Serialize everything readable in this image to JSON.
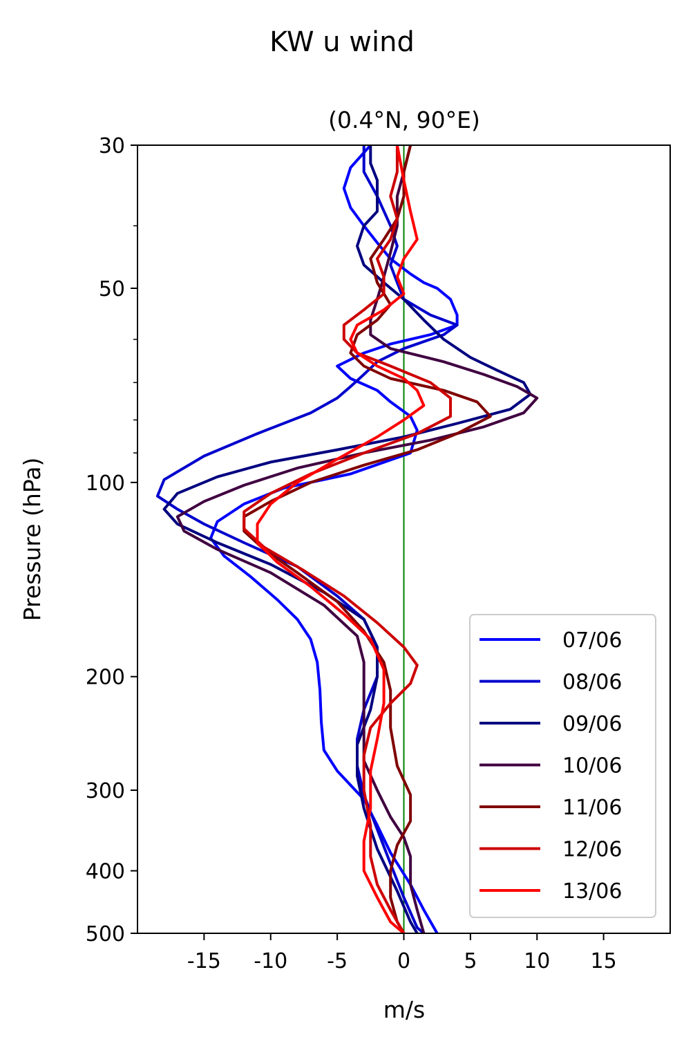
{
  "chart_data": {
    "type": "line",
    "title": "KW u wind",
    "subtitle": "(0.4°N, 90°E)",
    "xlabel": "m/s",
    "ylabel": "Pressure (hPa)",
    "xlim": [
      -20,
      20
    ],
    "ylim": [
      500,
      30
    ],
    "yscale": "log",
    "x_ticks": [
      -15,
      -10,
      -5,
      0,
      5,
      10,
      15
    ],
    "y_ticks": [
      30,
      50,
      100,
      200,
      300,
      400,
      500
    ],
    "grid": false,
    "legend_position": "lower right",
    "reference_line": {
      "x": 0,
      "color": "#008000"
    },
    "series": [
      {
        "name": "07/06",
        "color": "#0000ff",
        "points": [
          [
            -2.5,
            30
          ],
          [
            -4,
            32.5
          ],
          [
            -4.5,
            35
          ],
          [
            -4,
            37.5
          ],
          [
            -3,
            40
          ],
          [
            -2,
            42.5
          ],
          [
            -1,
            45
          ],
          [
            0.5,
            47.5
          ],
          [
            1.5,
            49
          ],
          [
            2.5,
            50
          ],
          [
            3.5,
            52
          ],
          [
            4,
            55
          ],
          [
            4,
            57
          ],
          [
            2,
            59
          ],
          [
            -1,
            61
          ],
          [
            -3,
            63
          ],
          [
            -5,
            66
          ],
          [
            -4,
            69
          ],
          [
            -2,
            72
          ],
          [
            -1,
            75
          ],
          [
            0.5,
            79
          ],
          [
            1,
            83
          ],
          [
            0.5,
            90
          ],
          [
            -4,
            97
          ],
          [
            -9,
            102
          ],
          [
            -12,
            108
          ],
          [
            -14,
            115
          ],
          [
            -14.5,
            122
          ],
          [
            -13.5,
            130
          ],
          [
            -11.5,
            140
          ],
          [
            -9.5,
            152
          ],
          [
            -8,
            163
          ],
          [
            -7,
            175
          ],
          [
            -6.5,
            190
          ],
          [
            -6.3,
            210
          ],
          [
            -6.2,
            235
          ],
          [
            -6,
            260
          ],
          [
            -5,
            280
          ],
          [
            -3,
            310
          ],
          [
            -2,
            340
          ],
          [
            -1,
            375
          ],
          [
            0.5,
            420
          ],
          [
            1.5,
            460
          ],
          [
            2.5,
            500
          ]
        ]
      },
      {
        "name": "08/06",
        "color": "#0000cd",
        "points": [
          [
            -3,
            30
          ],
          [
            -3,
            33
          ],
          [
            -2,
            36
          ],
          [
            -1,
            40
          ],
          [
            -0.5,
            43
          ],
          [
            -1,
            46
          ],
          [
            -0.5,
            49
          ],
          [
            0,
            52
          ],
          [
            2,
            55
          ],
          [
            4,
            57
          ],
          [
            3,
            59
          ],
          [
            0,
            62
          ],
          [
            -2,
            65
          ],
          [
            -3,
            68
          ],
          [
            -4,
            71
          ],
          [
            -5,
            74
          ],
          [
            -7,
            78
          ],
          [
            -11,
            84
          ],
          [
            -15,
            91
          ],
          [
            -18,
            99
          ],
          [
            -18.5,
            105
          ],
          [
            -17,
            110
          ],
          [
            -15,
            116
          ],
          [
            -12,
            124
          ],
          [
            -8,
            135
          ],
          [
            -5,
            150
          ],
          [
            -3,
            163
          ],
          [
            -2,
            180
          ],
          [
            -2,
            200
          ],
          [
            -3,
            225
          ],
          [
            -3.5,
            250
          ],
          [
            -3.5,
            275
          ],
          [
            -3,
            305
          ],
          [
            -2,
            345
          ],
          [
            -1,
            390
          ],
          [
            0,
            440
          ],
          [
            1,
            490
          ],
          [
            1.5,
            500
          ]
        ]
      },
      {
        "name": "09/06",
        "color": "#000080",
        "points": [
          [
            -2.5,
            30
          ],
          [
            -2.5,
            32
          ],
          [
            -2,
            34
          ],
          [
            -2,
            36
          ],
          [
            -2,
            38
          ],
          [
            -3,
            40
          ],
          [
            -3.5,
            43
          ],
          [
            -3,
            46
          ],
          [
            -1.5,
            49
          ],
          [
            0,
            52
          ],
          [
            1.5,
            56
          ],
          [
            3,
            60
          ],
          [
            5,
            64
          ],
          [
            7,
            67
          ],
          [
            9,
            70
          ],
          [
            9.5,
            73
          ],
          [
            8,
            77
          ],
          [
            4,
            81
          ],
          [
            0,
            85
          ],
          [
            -5,
            89
          ],
          [
            -10,
            93
          ],
          [
            -14,
            98
          ],
          [
            -17,
            104
          ],
          [
            -18,
            110
          ],
          [
            -17,
            116
          ],
          [
            -14,
            124
          ],
          [
            -10,
            134
          ],
          [
            -6,
            148
          ],
          [
            -3,
            163
          ],
          [
            -2,
            180
          ],
          [
            -2,
            200
          ],
          [
            -2.5,
            225
          ],
          [
            -3.5,
            255
          ],
          [
            -3.5,
            285
          ],
          [
            -3,
            320
          ],
          [
            -2,
            370
          ],
          [
            -0.5,
            430
          ],
          [
            0.5,
            480
          ],
          [
            1,
            500
          ]
        ]
      },
      {
        "name": "10/06",
        "color": "#400040",
        "points": [
          [
            0.5,
            30
          ],
          [
            0,
            33
          ],
          [
            -0.5,
            36
          ],
          [
            -0.5,
            40
          ],
          [
            -1,
            44
          ],
          [
            -1.5,
            48
          ],
          [
            -2,
            52
          ],
          [
            -2.5,
            56
          ],
          [
            -2.5,
            59
          ],
          [
            -1,
            62
          ],
          [
            3,
            65
          ],
          [
            6,
            68
          ],
          [
            8.5,
            71
          ],
          [
            10,
            74
          ],
          [
            9,
            78
          ],
          [
            6,
            82
          ],
          [
            2,
            86
          ],
          [
            -3,
            90
          ],
          [
            -8,
            95
          ],
          [
            -12,
            101
          ],
          [
            -15,
            107
          ],
          [
            -17,
            113
          ],
          [
            -16.5,
            119
          ],
          [
            -14,
            127
          ],
          [
            -10,
            138
          ],
          [
            -6,
            155
          ],
          [
            -3.5,
            173
          ],
          [
            -3,
            190
          ],
          [
            -3,
            210
          ],
          [
            -3,
            240
          ],
          [
            -3,
            270
          ],
          [
            -2,
            300
          ],
          [
            -1,
            330
          ],
          [
            0,
            355
          ],
          [
            0.5,
            380
          ],
          [
            0.5,
            420
          ],
          [
            1,
            460
          ],
          [
            1.5,
            500
          ]
        ]
      },
      {
        "name": "11/06",
        "color": "#800000",
        "points": [
          [
            0.5,
            30
          ],
          [
            0,
            33
          ],
          [
            0,
            36
          ],
          [
            -0.5,
            39
          ],
          [
            -1.5,
            42
          ],
          [
            -2.5,
            45
          ],
          [
            -2,
            49
          ],
          [
            -1,
            53
          ],
          [
            -2,
            56
          ],
          [
            -3.5,
            59
          ],
          [
            -4,
            63
          ],
          [
            -3,
            66
          ],
          [
            -1,
            69
          ],
          [
            3,
            72
          ],
          [
            5.5,
            75
          ],
          [
            6.5,
            79
          ],
          [
            4,
            84
          ],
          [
            1,
            89
          ],
          [
            -3,
            94
          ],
          [
            -7,
            100
          ],
          [
            -10,
            107
          ],
          [
            -12,
            113
          ],
          [
            -12,
            119
          ],
          [
            -10.5,
            127
          ],
          [
            -8,
            138
          ],
          [
            -5,
            153
          ],
          [
            -3,
            170
          ],
          [
            -1.5,
            190
          ],
          [
            -1,
            210
          ],
          [
            -1,
            240
          ],
          [
            -0.5,
            275
          ],
          [
            0.5,
            305
          ],
          [
            0.5,
            335
          ],
          [
            -0.5,
            365
          ],
          [
            -1,
            400
          ],
          [
            -1,
            440
          ],
          [
            -0.5,
            480
          ],
          [
            0,
            500
          ]
        ]
      },
      {
        "name": "12/06",
        "color": "#cd0000",
        "points": [
          [
            -0.5,
            30
          ],
          [
            -0.5,
            33
          ],
          [
            -1,
            36
          ],
          [
            -0.5,
            39
          ],
          [
            -1,
            42
          ],
          [
            -2,
            45
          ],
          [
            -1.5,
            48
          ],
          [
            -1.5,
            51
          ],
          [
            -3,
            54
          ],
          [
            -4.5,
            57
          ],
          [
            -4.5,
            60
          ],
          [
            -3.5,
            63
          ],
          [
            -1,
            66
          ],
          [
            2,
            70
          ],
          [
            3.5,
            74
          ],
          [
            3.5,
            79
          ],
          [
            1,
            84
          ],
          [
            -3,
            90
          ],
          [
            -7,
            97
          ],
          [
            -10,
            104
          ],
          [
            -12,
            111
          ],
          [
            -12,
            118
          ],
          [
            -10.5,
            126
          ],
          [
            -7.5,
            137
          ],
          [
            -4.5,
            150
          ],
          [
            -2,
            165
          ],
          [
            0,
            180
          ],
          [
            1,
            192
          ],
          [
            0.5,
            205
          ],
          [
            -1,
            220
          ],
          [
            -2.5,
            240
          ],
          [
            -3,
            265
          ],
          [
            -3,
            300
          ],
          [
            -2.5,
            340
          ],
          [
            -2.5,
            380
          ],
          [
            -2,
            420
          ],
          [
            -1,
            460
          ],
          [
            0,
            500
          ]
        ]
      },
      {
        "name": "13/06",
        "color": "#ff0000",
        "points": [
          [
            -0.5,
            30
          ],
          [
            0,
            34
          ],
          [
            0.5,
            38
          ],
          [
            1,
            42
          ],
          [
            0,
            45
          ],
          [
            -0.5,
            48
          ],
          [
            0,
            51
          ],
          [
            -1.5,
            54
          ],
          [
            -3.5,
            57
          ],
          [
            -4,
            60
          ],
          [
            -3.5,
            63
          ],
          [
            -2,
            66
          ],
          [
            0,
            69
          ],
          [
            1,
            72
          ],
          [
            1.5,
            76
          ],
          [
            0,
            80
          ],
          [
            -2,
            85
          ],
          [
            -5,
            92
          ],
          [
            -8,
            100
          ],
          [
            -10,
            108
          ],
          [
            -11,
            116
          ],
          [
            -11,
            124
          ],
          [
            -9.5,
            133
          ],
          [
            -7,
            145
          ],
          [
            -4.5,
            160
          ],
          [
            -2.5,
            175
          ],
          [
            -1.5,
            195
          ],
          [
            -1.5,
            220
          ],
          [
            -2,
            250
          ],
          [
            -2.5,
            280
          ],
          [
            -2.5,
            320
          ],
          [
            -3,
            360
          ],
          [
            -3,
            400
          ],
          [
            -2,
            440
          ],
          [
            -1,
            480
          ],
          [
            0,
            500
          ]
        ]
      }
    ]
  }
}
